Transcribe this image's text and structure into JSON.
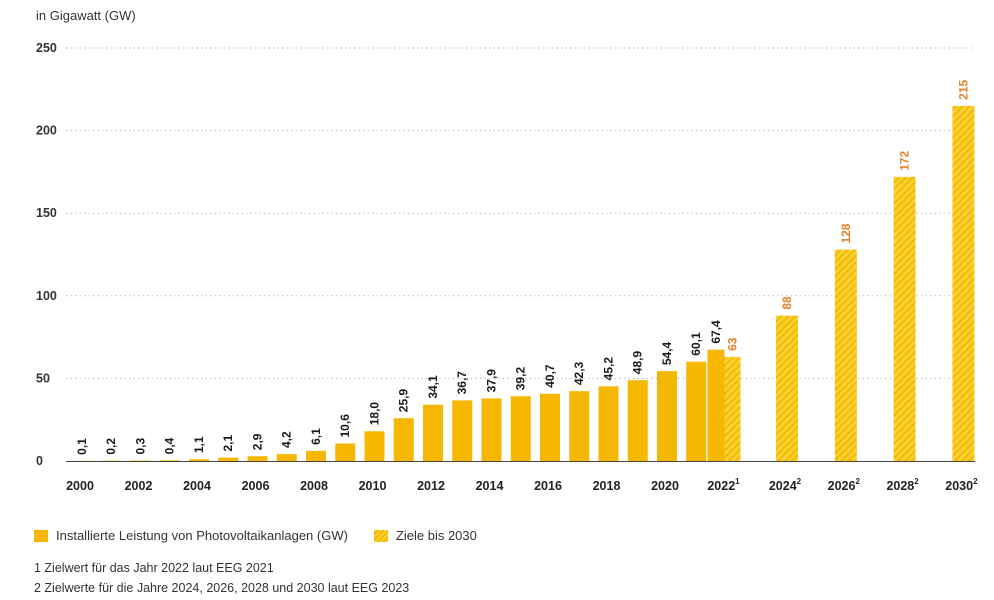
{
  "unit_label": "in Gigawatt (GW)",
  "legend": {
    "actual": "Installierte Leistung von Photovoltaikanlagen (GW)",
    "target": "Ziele bis 2030"
  },
  "footnotes": [
    "1  Zielwert für das Jahr 2022 laut EEG 2021",
    "2  Zielwerte für die Jahre 2024, 2026, 2028 und 2030 laut EEG 2023"
  ],
  "colors": {
    "actual": "#f5b700",
    "target_light": "#f8d234",
    "target_dark": "#f3b900",
    "target_label": "#e8822a",
    "grid": "#bbbbbb",
    "axis": "#444444"
  },
  "chart_data": {
    "type": "bar",
    "ylim": [
      0,
      250
    ],
    "yticks": [
      "0",
      "50",
      "100",
      "150",
      "200",
      "250"
    ],
    "grid": "horizontal dotted",
    "legend_position": "bottom",
    "series": [
      {
        "name": "Installierte Leistung von Photovoltaikanlagen (GW)",
        "points": [
          {
            "x": "2000",
            "value": 0.1,
            "label": "0,1"
          },
          {
            "x": "2001",
            "value": 0.2,
            "label": "0,2"
          },
          {
            "x": "2002",
            "value": 0.3,
            "label": "0,3"
          },
          {
            "x": "2003",
            "value": 0.4,
            "label": "0,4"
          },
          {
            "x": "2004",
            "value": 1.1,
            "label": "1,1"
          },
          {
            "x": "2005",
            "value": 2.1,
            "label": "2,1"
          },
          {
            "x": "2006",
            "value": 2.9,
            "label": "2,9"
          },
          {
            "x": "2007",
            "value": 4.2,
            "label": "4,2"
          },
          {
            "x": "2008",
            "value": 6.1,
            "label": "6,1"
          },
          {
            "x": "2009",
            "value": 10.6,
            "label": "10,6"
          },
          {
            "x": "2010",
            "value": 18.0,
            "label": "18,0"
          },
          {
            "x": "2011",
            "value": 25.9,
            "label": "25,9"
          },
          {
            "x": "2012",
            "value": 34.1,
            "label": "34,1"
          },
          {
            "x": "2013",
            "value": 36.7,
            "label": "36,7"
          },
          {
            "x": "2014",
            "value": 37.9,
            "label": "37,9"
          },
          {
            "x": "2015",
            "value": 39.2,
            "label": "39,2"
          },
          {
            "x": "2016",
            "value": 40.7,
            "label": "40,7"
          },
          {
            "x": "2017",
            "value": 42.3,
            "label": "42,3"
          },
          {
            "x": "2018",
            "value": 45.2,
            "label": "45,2"
          },
          {
            "x": "2019",
            "value": 48.9,
            "label": "48,9"
          },
          {
            "x": "2020",
            "value": 54.4,
            "label": "54,4"
          },
          {
            "x": "2021",
            "value": 60.1,
            "label": "60,1"
          },
          {
            "x": "2022",
            "value": 67.4,
            "label": "67,4"
          }
        ]
      },
      {
        "name": "Ziele bis 2030",
        "points": [
          {
            "x": "2022",
            "value": 63,
            "label": "63"
          },
          {
            "x": "2024",
            "value": 88,
            "label": "88"
          },
          {
            "x": "2026",
            "value": 128,
            "label": "128"
          },
          {
            "x": "2028",
            "value": 172,
            "label": "172"
          },
          {
            "x": "2030",
            "value": 215,
            "label": "215"
          }
        ]
      }
    ],
    "xtick_labels": [
      {
        "x": "2000",
        "text": "2000",
        "sup": ""
      },
      {
        "x": "2002",
        "text": "2002",
        "sup": ""
      },
      {
        "x": "2004",
        "text": "2004",
        "sup": ""
      },
      {
        "x": "2006",
        "text": "2006",
        "sup": ""
      },
      {
        "x": "2008",
        "text": "2008",
        "sup": ""
      },
      {
        "x": "2010",
        "text": "2010",
        "sup": ""
      },
      {
        "x": "2012",
        "text": "2012",
        "sup": ""
      },
      {
        "x": "2014",
        "text": "2014",
        "sup": ""
      },
      {
        "x": "2016",
        "text": "2016",
        "sup": ""
      },
      {
        "x": "2018",
        "text": "2018",
        "sup": ""
      },
      {
        "x": "2020",
        "text": "2020",
        "sup": ""
      },
      {
        "x": "2022",
        "text": "2022",
        "sup": "1"
      },
      {
        "x": "2024",
        "text": "2024",
        "sup": "2"
      },
      {
        "x": "2026",
        "text": "2026",
        "sup": "2"
      },
      {
        "x": "2028",
        "text": "2028",
        "sup": "2"
      },
      {
        "x": "2030",
        "text": "2030",
        "sup": "2"
      }
    ]
  }
}
